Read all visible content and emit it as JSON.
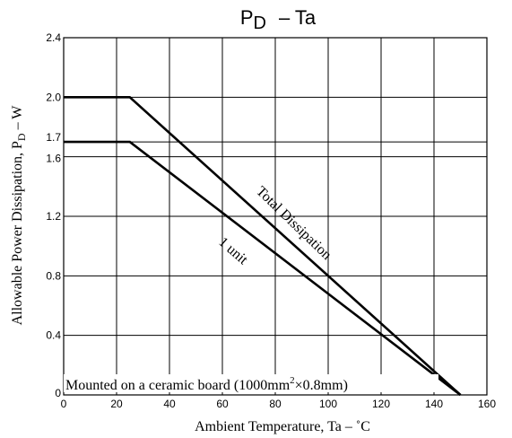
{
  "chart_data": {
    "type": "line",
    "title": "PD  –  Ta",
    "title_main": "P",
    "title_sub": "D",
    "title_rest": "–  Ta",
    "xlabel": "Ambient Temperature, Ta  –  ˚C",
    "ylabel_main": "Allowable Power Dissipation, P",
    "ylabel_sub": "D",
    "ylabel_rest": "  –  W",
    "xlim": [
      0,
      160
    ],
    "ylim": [
      0,
      2.4
    ],
    "x_ticks": [
      "0",
      "20",
      "40",
      "60",
      "80",
      "100",
      "120",
      "140",
      "160"
    ],
    "x_tick_values": [
      0,
      20,
      40,
      60,
      80,
      100,
      120,
      140,
      160
    ],
    "y_ticks": [
      "0",
      "0.4",
      "0.8",
      "1.2",
      "1.6",
      "1.7",
      "2.0",
      "2.4"
    ],
    "y_tick_values": [
      0,
      0.4,
      0.8,
      1.2,
      1.6,
      1.7,
      2.0,
      2.4
    ],
    "grid": true,
    "series": [
      {
        "name": "Total Dissipation",
        "x": [
          0,
          25,
          150
        ],
        "y": [
          2.0,
          2.0,
          0
        ]
      },
      {
        "name": "1 unit",
        "x": [
          0,
          25,
          150
        ],
        "y": [
          1.7,
          1.7,
          0
        ]
      }
    ],
    "annotation_main": "Mounted on a ceramic board (1000mm",
    "annotation_sup": "2",
    "annotation_rest": "×0.8mm)"
  }
}
